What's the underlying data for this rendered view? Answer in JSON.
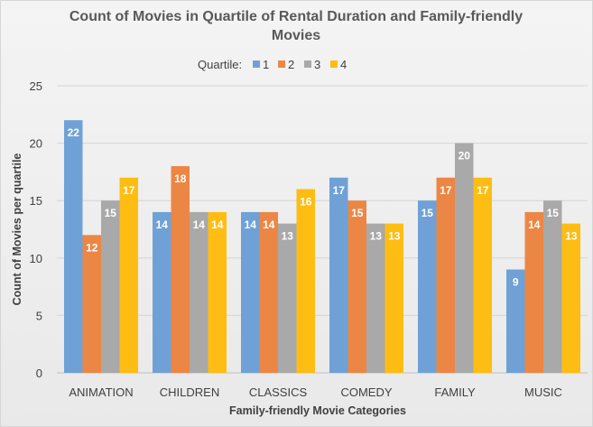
{
  "chart_data": {
    "type": "bar",
    "title_line1": "Count of Movies in Quartile of Rental Duration and Family-friendly",
    "title_line2": "Movies",
    "legend_title": "Quartile:",
    "legend_position": "top",
    "xlabel": "Family-friendly Movie Categories",
    "ylabel": "Count of Movies per quartile",
    "ylim": [
      0,
      25
    ],
    "yticks": [
      "0",
      "5",
      "10",
      "15",
      "20",
      "25"
    ],
    "grid": true,
    "categories": [
      "ANIMATION",
      "CHILDREN",
      "CLASSICS",
      "COMEDY",
      "FAMILY",
      "MUSIC"
    ],
    "series": [
      {
        "name": "1",
        "color": "#6fa1d7",
        "values": [
          22,
          14,
          14,
          17,
          15,
          9
        ]
      },
      {
        "name": "2",
        "color": "#ec8645",
        "values": [
          12,
          18,
          14,
          15,
          17,
          14
        ]
      },
      {
        "name": "3",
        "color": "#a9a9a9",
        "values": [
          15,
          14,
          13,
          13,
          20,
          15
        ]
      },
      {
        "name": "4",
        "color": "#fdbd12",
        "values": [
          17,
          14,
          16,
          13,
          17,
          13
        ]
      }
    ]
  }
}
